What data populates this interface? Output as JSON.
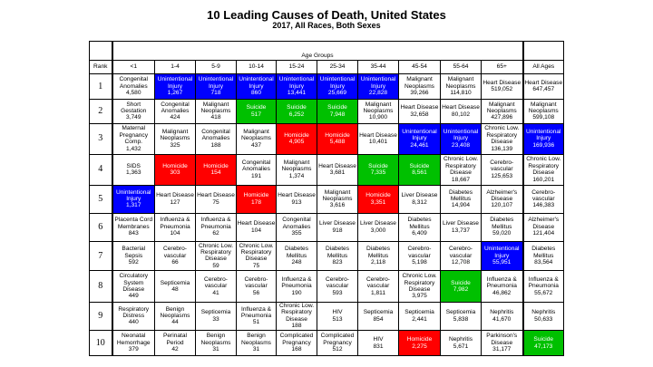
{
  "title": "10 Leading Causes of Death, United States",
  "subtitle": "2017, All Races, Both Sexes",
  "group_label": "Age Groups",
  "rank_label": "Rank",
  "columns": [
    "<1",
    "1-4",
    "5-9",
    "10-14",
    "15-24",
    "25-34",
    "35-44",
    "45-54",
    "55-64",
    "65+",
    "All Ages"
  ],
  "colors": {
    "unintentional_injury": "#0000ff",
    "suicide": "#00c000",
    "homicide": "#ff0000"
  },
  "rows": [
    {
      "rank": "1",
      "cells": [
        {
          "label": "Congenital Anomalies",
          "value": "4,580",
          "color": ""
        },
        {
          "label": "Unintentional Injury",
          "value": "1,267",
          "color": "blue"
        },
        {
          "label": "Unintentional Injury",
          "value": "718",
          "color": "blue"
        },
        {
          "label": "Unintentional Injury",
          "value": "860",
          "color": "blue"
        },
        {
          "label": "Unintentional Injury",
          "value": "13,441",
          "color": "blue"
        },
        {
          "label": "Unintentional Injury",
          "value": "25,669",
          "color": "blue"
        },
        {
          "label": "Unintentional Injury",
          "value": "22,828",
          "color": "blue"
        },
        {
          "label": "Malignant Neoplasms",
          "value": "39,266",
          "color": ""
        },
        {
          "label": "Malignant Neoplasms",
          "value": "114,810",
          "color": ""
        },
        {
          "label": "Heart Disease",
          "value": "519,052",
          "color": ""
        },
        {
          "label": "Heart Disease",
          "value": "647,457",
          "color": ""
        }
      ]
    },
    {
      "rank": "2",
      "cells": [
        {
          "label": "Short Gestation",
          "value": "3,749",
          "color": ""
        },
        {
          "label": "Congenital Anomalies",
          "value": "424",
          "color": ""
        },
        {
          "label": "Malignant Neoplasms",
          "value": "418",
          "color": ""
        },
        {
          "label": "Suicide",
          "value": "517",
          "color": "green"
        },
        {
          "label": "Suicide",
          "value": "6,252",
          "color": "green"
        },
        {
          "label": "Suicide",
          "value": "7,948",
          "color": "green"
        },
        {
          "label": "Malignant Neoplasms",
          "value": "10,900",
          "color": ""
        },
        {
          "label": "Heart Disease",
          "value": "32,658",
          "color": ""
        },
        {
          "label": "Heart Disease",
          "value": "80,102",
          "color": ""
        },
        {
          "label": "Malignant Neoplasms",
          "value": "427,896",
          "color": ""
        },
        {
          "label": "Malignant Neoplasms",
          "value": "599,108",
          "color": ""
        }
      ]
    },
    {
      "rank": "3",
      "cells": [
        {
          "label": "Maternal Pregnancy Comp.",
          "value": "1,432",
          "color": ""
        },
        {
          "label": "Malignant Neoplasms",
          "value": "325",
          "color": ""
        },
        {
          "label": "Congenital Anomalies",
          "value": "188",
          "color": ""
        },
        {
          "label": "Malignant Neoplasms",
          "value": "437",
          "color": ""
        },
        {
          "label": "Homicide",
          "value": "4,905",
          "color": "red"
        },
        {
          "label": "Homicide",
          "value": "5,488",
          "color": "red"
        },
        {
          "label": "Heart Disease",
          "value": "10,401",
          "color": ""
        },
        {
          "label": "Unintentional Injury",
          "value": "24,461",
          "color": "blue"
        },
        {
          "label": "Unintentional Injury",
          "value": "23,408",
          "color": "blue"
        },
        {
          "label": "Chronic Low. Respiratory Disease",
          "value": "136,139",
          "color": ""
        },
        {
          "label": "Unintentional Injury",
          "value": "169,936",
          "color": "blue"
        }
      ]
    },
    {
      "rank": "4",
      "cells": [
        {
          "label": "SIDS",
          "value": "1,363",
          "color": ""
        },
        {
          "label": "Homicide",
          "value": "303",
          "color": "red"
        },
        {
          "label": "Homicide",
          "value": "154",
          "color": "red"
        },
        {
          "label": "Congenital Anomalies",
          "value": "191",
          "color": ""
        },
        {
          "label": "Malignant Neoplasms",
          "value": "1,374",
          "color": ""
        },
        {
          "label": "Heart Disease",
          "value": "3,681",
          "color": ""
        },
        {
          "label": "Suicide",
          "value": "7,335",
          "color": "green"
        },
        {
          "label": "Suicide",
          "value": "8,561",
          "color": "green"
        },
        {
          "label": "Chronic Low. Respiratory Disease",
          "value": "18,667",
          "color": ""
        },
        {
          "label": "Cerebro-vascular",
          "value": "125,653",
          "color": ""
        },
        {
          "label": "Chronic Low. Respiratory Disease",
          "value": "160,201",
          "color": ""
        }
      ]
    },
    {
      "rank": "5",
      "cells": [
        {
          "label": "Unintentional Injury",
          "value": "1,317",
          "color": "blue"
        },
        {
          "label": "Heart Disease",
          "value": "127",
          "color": ""
        },
        {
          "label": "Heart Disease",
          "value": "75",
          "color": ""
        },
        {
          "label": "Homicide",
          "value": "178",
          "color": "red"
        },
        {
          "label": "Heart Disease",
          "value": "913",
          "color": ""
        },
        {
          "label": "Malignant Neoplasms",
          "value": "3,616",
          "color": ""
        },
        {
          "label": "Homicide",
          "value": "3,351",
          "color": "red"
        },
        {
          "label": "Liver Disease",
          "value": "8,312",
          "color": ""
        },
        {
          "label": "Diabetes Mellitus",
          "value": "14,904",
          "color": ""
        },
        {
          "label": "Alzheimer's Disease",
          "value": "120,107",
          "color": ""
        },
        {
          "label": "Cerebro-vascular",
          "value": "146,383",
          "color": ""
        }
      ]
    },
    {
      "rank": "6",
      "cells": [
        {
          "label": "Placenta Cord Membranes",
          "value": "843",
          "color": ""
        },
        {
          "label": "Influenza & Pneumonia",
          "value": "104",
          "color": ""
        },
        {
          "label": "Influenza & Pneumonia",
          "value": "62",
          "color": ""
        },
        {
          "label": "Heart Disease",
          "value": "104",
          "color": ""
        },
        {
          "label": "Congenital Anomalies",
          "value": "355",
          "color": ""
        },
        {
          "label": "Liver Disease",
          "value": "918",
          "color": ""
        },
        {
          "label": "Liver Disease",
          "value": "3,000",
          "color": ""
        },
        {
          "label": "Diabetes Mellitus",
          "value": "6,409",
          "color": ""
        },
        {
          "label": "Liver Disease",
          "value": "13,737",
          "color": ""
        },
        {
          "label": "Diabetes Mellitus",
          "value": "59,020",
          "color": ""
        },
        {
          "label": "Alzheimer's Disease",
          "value": "121,404",
          "color": ""
        }
      ]
    },
    {
      "rank": "7",
      "cells": [
        {
          "label": "Bacterial Sepsis",
          "value": "592",
          "color": ""
        },
        {
          "label": "Cerebro-vascular",
          "value": "66",
          "color": ""
        },
        {
          "label": "Chronic Low. Respiratory Disease",
          "value": "59",
          "color": ""
        },
        {
          "label": "Chronic Low. Respiratory Disease",
          "value": "75",
          "color": ""
        },
        {
          "label": "Diabetes Mellitus",
          "value": "248",
          "color": ""
        },
        {
          "label": "Diabetes Mellitus",
          "value": "823",
          "color": ""
        },
        {
          "label": "Diabetes Mellitus",
          "value": "2,118",
          "color": ""
        },
        {
          "label": "Cerebro-vascular",
          "value": "5,198",
          "color": ""
        },
        {
          "label": "Cerebro-vascular",
          "value": "12,708",
          "color": ""
        },
        {
          "label": "Unintentional Injury",
          "value": "55,951",
          "color": "blue"
        },
        {
          "label": "Diabetes Mellitus",
          "value": "83,564",
          "color": ""
        }
      ]
    },
    {
      "rank": "8",
      "cells": [
        {
          "label": "Circulatory System Disease",
          "value": "449",
          "color": ""
        },
        {
          "label": "Septicemia",
          "value": "48",
          "color": ""
        },
        {
          "label": "Cerebro-vascular",
          "value": "41",
          "color": ""
        },
        {
          "label": "Cerebro-vascular",
          "value": "56",
          "color": ""
        },
        {
          "label": "Influenza & Pneumonia",
          "value": "190",
          "color": ""
        },
        {
          "label": "Cerebro-vascular",
          "value": "593",
          "color": ""
        },
        {
          "label": "Cerebro-vascular",
          "value": "1,811",
          "color": ""
        },
        {
          "label": "Chronic Low. Respiratory Disease",
          "value": "3,975",
          "color": ""
        },
        {
          "label": "Suicide",
          "value": "7,982",
          "color": "green"
        },
        {
          "label": "Influenza & Pneumonia",
          "value": "46,862",
          "color": ""
        },
        {
          "label": "Influenza & Pneumonia",
          "value": "55,672",
          "color": ""
        }
      ]
    },
    {
      "rank": "9",
      "cells": [
        {
          "label": "Respiratory Distress",
          "value": "440",
          "color": ""
        },
        {
          "label": "Benign Neoplasms",
          "value": "44",
          "color": ""
        },
        {
          "label": "Septicemia",
          "value": "33",
          "color": ""
        },
        {
          "label": "Influenza & Pneumonia",
          "value": "51",
          "color": ""
        },
        {
          "label": "Chronic Low. Respiratory Disease",
          "value": "188",
          "color": ""
        },
        {
          "label": "HIV",
          "value": "513",
          "color": ""
        },
        {
          "label": "Septicemia",
          "value": "854",
          "color": ""
        },
        {
          "label": "Septicemia",
          "value": "2,441",
          "color": ""
        },
        {
          "label": "Septicemia",
          "value": "5,838",
          "color": ""
        },
        {
          "label": "Nephritis",
          "value": "41,670",
          "color": ""
        },
        {
          "label": "Nephritis",
          "value": "50,633",
          "color": ""
        }
      ]
    },
    {
      "rank": "10",
      "cells": [
        {
          "label": "Neonatal Hemorrhage",
          "value": "379",
          "color": ""
        },
        {
          "label": "Perinatal Period",
          "value": "42",
          "color": ""
        },
        {
          "label": "Benign Neoplasms",
          "value": "31",
          "color": ""
        },
        {
          "label": "Benign Neoplasms",
          "value": "31",
          "color": ""
        },
        {
          "label": "Complicated Pregnancy",
          "value": "168",
          "color": ""
        },
        {
          "label": "Complicated Pregnancy",
          "value": "512",
          "color": ""
        },
        {
          "label": "HIV",
          "value": "831",
          "color": ""
        },
        {
          "label": "Homicide",
          "value": "2,275",
          "color": "red"
        },
        {
          "label": "Nephritis",
          "value": "5,671",
          "color": ""
        },
        {
          "label": "Parkinson's Disease",
          "value": "31,177",
          "color": ""
        },
        {
          "label": "Suicide",
          "value": "47,173",
          "color": "green"
        }
      ]
    }
  ]
}
